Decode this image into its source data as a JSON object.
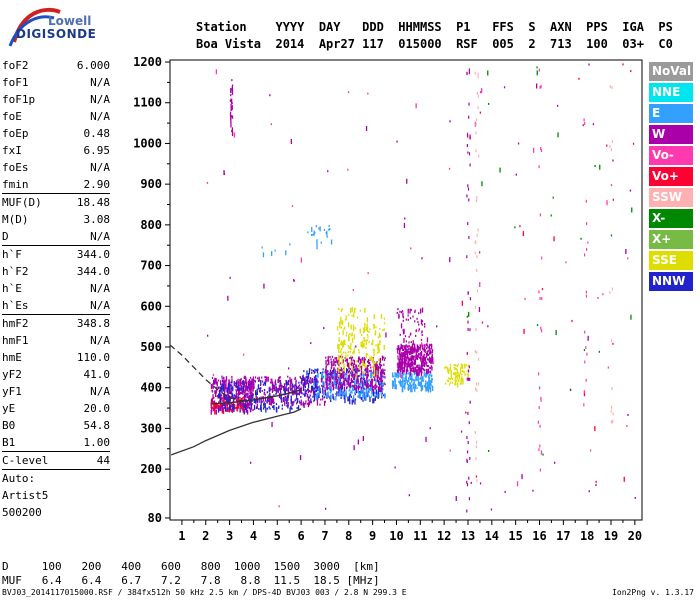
{
  "logo": {
    "line1": "Lowell",
    "line2": "DIGISONDE"
  },
  "header": {
    "labels": [
      "Station",
      "YYYY",
      "DAY",
      "DDD",
      "HHMMSS",
      "P1",
      "FFS",
      "S",
      "AXN",
      "PPS",
      "IGA",
      "PS"
    ],
    "values": [
      "Boa Vista",
      "2014",
      "Apr27",
      "117",
      "015000",
      "RSF",
      "005",
      "2",
      "713",
      "100",
      "03+",
      "C0"
    ]
  },
  "params": {
    "group1": [
      {
        "name": "foF2",
        "value": "6.000"
      },
      {
        "name": "foF1",
        "value": "N/A"
      },
      {
        "name": "foF1p",
        "value": "N/A"
      },
      {
        "name": "foE",
        "value": "N/A"
      },
      {
        "name": "foEp",
        "value": "0.48"
      },
      {
        "name": "fxI",
        "value": "6.95"
      },
      {
        "name": "foEs",
        "value": "N/A"
      },
      {
        "name": "fmin",
        "value": "2.90"
      }
    ],
    "group2": [
      {
        "name": "MUF(D)",
        "value": "18.48"
      },
      {
        "name": "M(D)",
        "value": "3.08"
      },
      {
        "name": "D",
        "value": "N/A"
      }
    ],
    "group3": [
      {
        "name": "h`F",
        "value": "344.0"
      },
      {
        "name": "h`F2",
        "value": "344.0"
      },
      {
        "name": "h`E",
        "value": "N/A"
      },
      {
        "name": "h`Es",
        "value": "N/A"
      }
    ],
    "group4": [
      {
        "name": "hmF2",
        "value": "348.8"
      },
      {
        "name": "hmF1",
        "value": "N/A"
      },
      {
        "name": "hmE",
        "value": "110.0"
      },
      {
        "name": "yF2",
        "value": "41.0"
      },
      {
        "name": "yF1",
        "value": "N/A"
      },
      {
        "name": "yE",
        "value": "20.0"
      },
      {
        "name": "B0",
        "value": "54.8"
      },
      {
        "name": "B1",
        "value": "1.00"
      }
    ],
    "group5": [
      {
        "name": "C-level",
        "value": "44"
      }
    ],
    "auto_lines": [
      "Auto:",
      "Artist5",
      "500200"
    ]
  },
  "legend": [
    {
      "label": "NoVal",
      "color": "#9a9a9a"
    },
    {
      "label": "NNE",
      "color": "#00e5ee"
    },
    {
      "label": "E",
      "color": "#33a0ff"
    },
    {
      "label": "W",
      "color": "#aa00aa"
    },
    {
      "label": "Vo-",
      "color": "#ff3ab0"
    },
    {
      "label": "Vo+",
      "color": "#ff0033"
    },
    {
      "label": "SSW",
      "color": "#ffb0b0"
    },
    {
      "label": "X-",
      "color": "#008800"
    },
    {
      "label": "X+",
      "color": "#77bb44"
    },
    {
      "label": "SSE",
      "color": "#dddd00"
    },
    {
      "label": "NNW",
      "color": "#2222cc"
    }
  ],
  "chart_data": {
    "type": "scatter",
    "xlim": [
      0.5,
      20.3
    ],
    "ylim": [
      75,
      1205
    ],
    "x_ticks": [
      1,
      2,
      3,
      4,
      5,
      6,
      7,
      8,
      9,
      10,
      11,
      12,
      13,
      14,
      15,
      16,
      17,
      18,
      19,
      20
    ],
    "y_ticks": [
      80,
      200,
      300,
      400,
      500,
      600,
      700,
      800,
      900,
      1000,
      1100,
      1200
    ],
    "profile_solid": [
      [
        0.55,
        235
      ],
      [
        1.5,
        255
      ],
      [
        2.0,
        270
      ],
      [
        3.0,
        295
      ],
      [
        4.0,
        315
      ],
      [
        5.0,
        330
      ],
      [
        5.7,
        340
      ],
      [
        6.0,
        348
      ]
    ],
    "trace_solid": [
      [
        2.2,
        360
      ],
      [
        3.0,
        363
      ],
      [
        4.0,
        370
      ],
      [
        5.0,
        380
      ],
      [
        5.6,
        388
      ],
      [
        6.0,
        395
      ]
    ],
    "trace_dashed": [
      [
        0.5,
        505
      ],
      [
        1.0,
        480
      ],
      [
        1.5,
        450
      ],
      [
        2.0,
        420
      ],
      [
        2.5,
        395
      ],
      [
        3.0,
        375
      ],
      [
        3.5,
        368
      ],
      [
        4.0,
        370
      ],
      [
        5.0,
        380
      ],
      [
        6.0,
        395
      ]
    ],
    "clusters": [
      {
        "fmin": 2.2,
        "fmax": 4.0,
        "hmin": 345,
        "hmax": 430,
        "color": "#aa00aa",
        "n": 300
      },
      {
        "fmin": 2.2,
        "fmax": 3.6,
        "hmin": 345,
        "hmax": 380,
        "color": "#ff0033",
        "n": 80
      },
      {
        "fmin": 2.5,
        "fmax": 6.0,
        "hmin": 350,
        "hmax": 420,
        "color": "#2222cc",
        "n": 260
      },
      {
        "fmin": 3.5,
        "fmax": 7.0,
        "hmin": 360,
        "hmax": 430,
        "color": "#aa00aa",
        "n": 240
      },
      {
        "fmin": 6.0,
        "fmax": 9.5,
        "hmin": 370,
        "hmax": 450,
        "color": "#2222cc",
        "n": 260
      },
      {
        "fmin": 6.5,
        "fmax": 9.5,
        "hmin": 380,
        "hmax": 440,
        "color": "#33a0ff",
        "n": 200
      },
      {
        "fmin": 7.0,
        "fmax": 9.5,
        "hmin": 400,
        "hmax": 480,
        "color": "#aa00aa",
        "n": 340
      },
      {
        "fmin": 7.5,
        "fmax": 9.3,
        "hmin": 430,
        "hmax": 560,
        "color": "#dddd00",
        "n": 130
      },
      {
        "fmin": 7.5,
        "fmax": 9.5,
        "hmin": 500,
        "hmax": 600,
        "color": "#dddd00",
        "n": 60
      },
      {
        "fmin": 9.8,
        "fmax": 11.5,
        "hmin": 400,
        "hmax": 440,
        "color": "#33a0ff",
        "n": 180
      },
      {
        "fmin": 10.0,
        "fmax": 11.5,
        "hmin": 440,
        "hmax": 510,
        "color": "#aa00aa",
        "n": 350
      },
      {
        "fmin": 10.0,
        "fmax": 11.3,
        "hmin": 500,
        "hmax": 600,
        "color": "#aa00aa",
        "n": 60
      },
      {
        "fmin": 12.0,
        "fmax": 13.0,
        "hmin": 410,
        "hmax": 460,
        "color": "#dddd00",
        "n": 80
      },
      {
        "fmin": 3.0,
        "fmax": 3.1,
        "hmin": 1030,
        "hmax": 1160,
        "color": "#aa00aa",
        "n": 25
      },
      {
        "fmin": 6.2,
        "fmax": 7.3,
        "hmin": 750,
        "hmax": 800,
        "color": "#33a0ff",
        "n": 20
      },
      {
        "fmin": 4.0,
        "fmax": 5.5,
        "hmin": 730,
        "hmax": 760,
        "color": "#33a0ff",
        "n": 6
      },
      {
        "fmin": 2.0,
        "fmax": 20.0,
        "hmin": 100,
        "hmax": 1200,
        "color": "#aa00aa",
        "n": 70
      },
      {
        "fmin": 2.0,
        "fmax": 20.0,
        "hmin": 100,
        "hmax": 1200,
        "color": "#ff3ab0",
        "n": 40
      },
      {
        "fmin": 12.5,
        "fmax": 20.0,
        "hmin": 150,
        "hmax": 1200,
        "color": "#008800",
        "n": 25
      },
      {
        "fmin": 12.5,
        "fmax": 20.0,
        "hmin": 150,
        "hmax": 1200,
        "color": "#ff0033",
        "n": 25
      }
    ],
    "columns": [
      {
        "f": 13.0,
        "hmin": 90,
        "hmax": 1200,
        "color": "#aa00aa",
        "n": 45
      },
      {
        "f": 13.35,
        "hmin": 150,
        "hmax": 1200,
        "color": "#ffb0b0",
        "n": 35
      },
      {
        "f": 16.0,
        "hmin": 200,
        "hmax": 1200,
        "color": "#ff3ab0",
        "n": 25
      },
      {
        "f": 17.9,
        "hmin": 250,
        "hmax": 1150,
        "color": "#ff3ab0",
        "n": 15
      },
      {
        "f": 19.0,
        "hmin": 300,
        "hmax": 1150,
        "color": "#ffb0b0",
        "n": 15
      }
    ]
  },
  "bottom": {
    "d_label": "D",
    "d_values": [
      "100",
      "200",
      "400",
      "600",
      "800",
      "1000",
      "1500",
      "3000",
      "[km]"
    ],
    "muf_label": "MUF",
    "muf_values": [
      "6.4",
      "6.4",
      "6.7",
      "7.2",
      "7.8",
      "8.8",
      "11.5",
      "18.5",
      "[MHz]"
    ]
  },
  "footer": {
    "left": "BVJ03_2014117015000.RSF / 384fx512h 50 kHz 2.5 km / DPS-4D BVJ03 003 / 2.8 N 299.3 E",
    "right": "Ion2Png v. 1.3.17"
  }
}
